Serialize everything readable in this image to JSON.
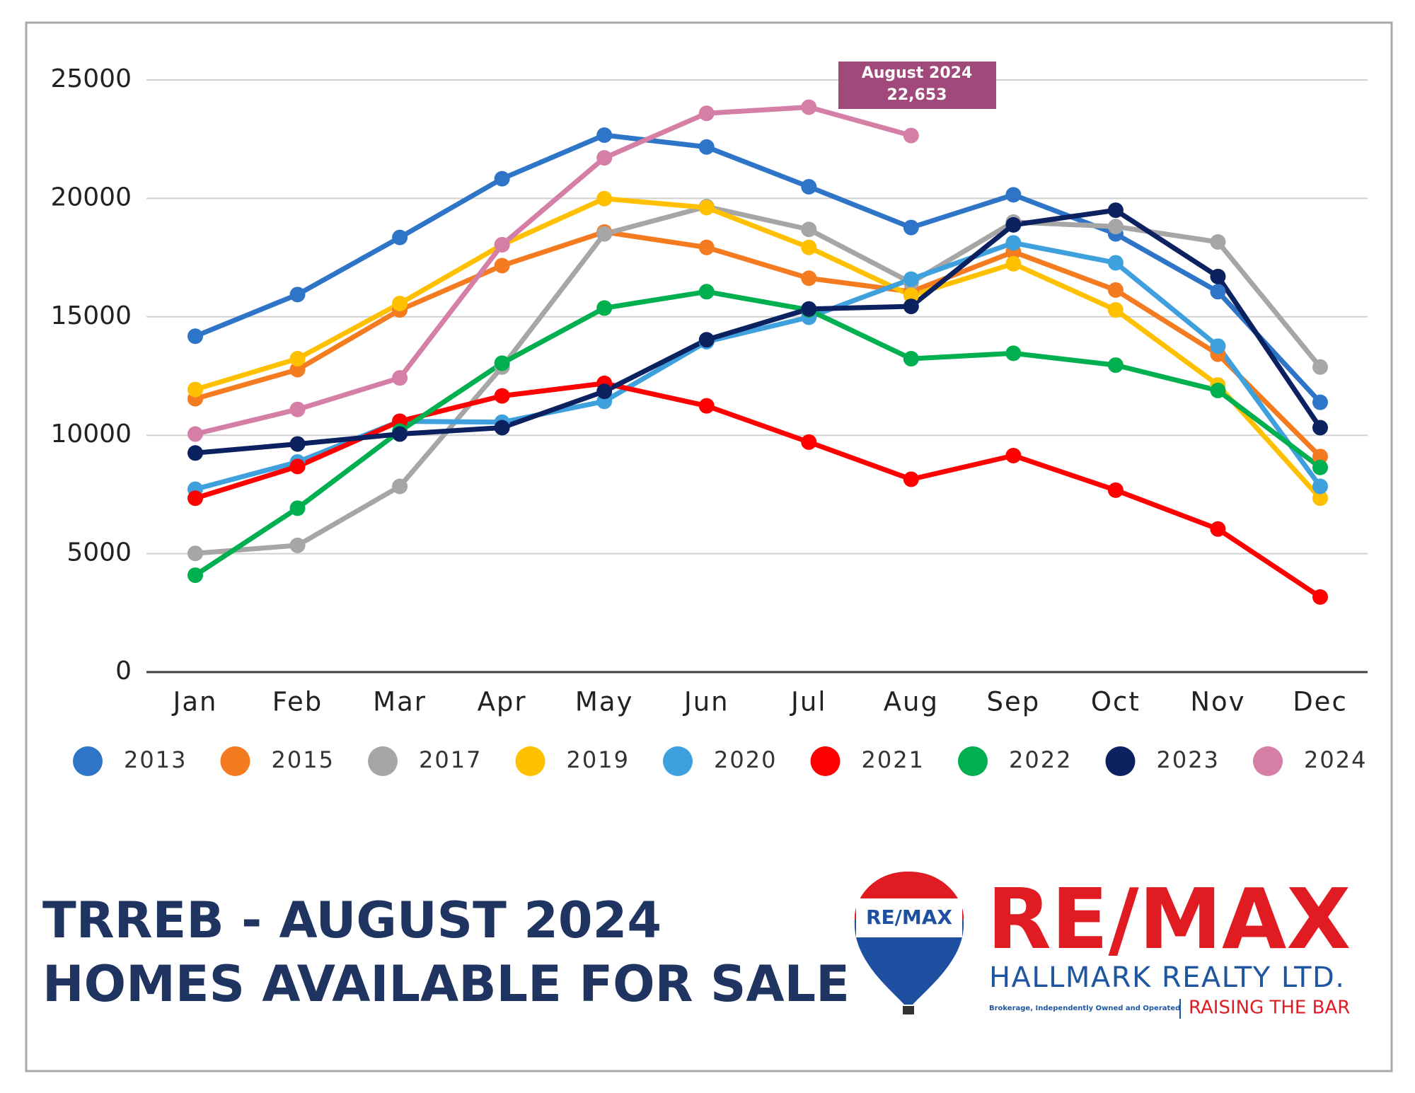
{
  "chart_data": {
    "type": "line",
    "categories": [
      "Jan",
      "Feb",
      "Mar",
      "Apr",
      "May",
      "Jun",
      "Jul",
      "Aug",
      "Sep",
      "Oct",
      "Nov",
      "Dec"
    ],
    "series": [
      {
        "name": "2013",
        "color": "#2e75c8",
        "values": [
          14180,
          15940,
          18350,
          20830,
          22670,
          22170,
          20490,
          18770,
          20150,
          18500,
          16060,
          11390
        ]
      },
      {
        "name": "2015",
        "color": "#f47b20",
        "values": [
          11540,
          12770,
          15290,
          17160,
          18580,
          17930,
          16630,
          16060,
          17740,
          16130,
          13420,
          9100
        ]
      },
      {
        "name": "2017",
        "color": "#a6a6a6",
        "values": [
          5010,
          5350,
          7840,
          12880,
          18500,
          19650,
          18690,
          16440,
          19000,
          18810,
          18160,
          12880
        ]
      },
      {
        "name": "2019",
        "color": "#ffc000",
        "values": [
          11930,
          13230,
          15560,
          18040,
          19990,
          19610,
          17930,
          15900,
          17240,
          15290,
          12120,
          7340
        ]
      },
      {
        "name": "2020",
        "color": "#3ea0dc",
        "values": [
          7720,
          8870,
          10590,
          10550,
          11430,
          13950,
          14980,
          16590,
          18120,
          17280,
          13760,
          7840
        ]
      },
      {
        "name": "2021",
        "color": "#ff0000",
        "values": [
          7340,
          8680,
          10590,
          11660,
          12190,
          11240,
          9710,
          8140,
          9140,
          7680,
          6040,
          3170
        ]
      },
      {
        "name": "2022",
        "color": "#00b050",
        "values": [
          4090,
          6920,
          10170,
          13040,
          15370,
          16060,
          15290,
          13230,
          13460,
          12960,
          11890,
          8640
        ]
      },
      {
        "name": "2023",
        "color": "#0b2160",
        "values": [
          9250,
          9630,
          10050,
          10320,
          11850,
          14030,
          15330,
          15440,
          18880,
          19500,
          16700,
          10320
        ]
      },
      {
        "name": "2024",
        "color": "#d57ea6",
        "values": [
          10050,
          11090,
          12420,
          18040,
          21710,
          23590,
          23850,
          22653,
          null,
          null,
          null,
          null
        ]
      }
    ],
    "ylim": [
      0,
      25000
    ],
    "yticks": [
      0,
      5000,
      10000,
      15000,
      20000,
      25000
    ],
    "grid": true,
    "annotation": {
      "text": "August 2024",
      "label": "22,653"
    }
  },
  "footer": {
    "title": [
      "TRREB - AUGUST 2024",
      "HOMES AVAILABLE FOR SALE"
    ]
  },
  "logo": {
    "balloon": "RE/MAX",
    "brand": "RE/MAX",
    "office": "HALLMARK REALTY LTD.",
    "note": "Brokerage, Independently Owned and Operated",
    "slogan": "RAISING THE BAR"
  }
}
